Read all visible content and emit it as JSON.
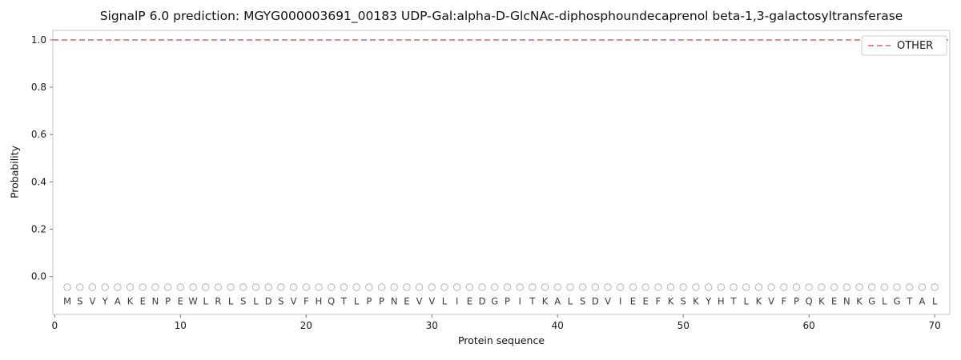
{
  "figure": {
    "title": "SignalP 6.0 prediction: MGYG000003691_00183 UDP-Gal:alpha-D-GlcNAc-diphosphoundecaprenol beta-1,3-galactosyltransferase"
  },
  "chart_data": {
    "type": "line",
    "title": "SignalP 6.0 prediction: MGYG000003691_00183 UDP-Gal:alpha-D-GlcNAc-diphosphoundecaprenol beta-1,3-galactosyltransferase",
    "xlabel": "Protein sequence",
    "ylabel": "Probability",
    "xlim": [
      -0.15,
      71.2
    ],
    "ylim": [
      -0.16,
      1.04
    ],
    "x_ticks": [
      0,
      10,
      20,
      30,
      40,
      50,
      60,
      70
    ],
    "y_ticks": [
      "0.0",
      "0.2",
      "0.4",
      "0.6",
      "0.8",
      "1.0"
    ],
    "grid": false,
    "legend": {
      "position": "upper right",
      "entries": [
        {
          "label": "OTHER",
          "color": "#e26060",
          "linestyle": "dashed"
        }
      ]
    },
    "series": [
      {
        "name": "OTHER",
        "type": "hline",
        "y": 1.0,
        "x_start": -0.15,
        "x_end": 71.2,
        "color": "#e26060",
        "linestyle": "dashed"
      }
    ],
    "sequence": "MSVYAKENPEWLRLSLDSVFHQTLPPNEVVLIEDGPITKALSDVIEEFKSKYHTLKVFPQKENKGLGTAL",
    "sequence_start_position": 1,
    "residue_marker": {
      "shape": "circle",
      "y": -0.045
    },
    "sequence_label_y": -0.105,
    "colors": {
      "marker_stroke": "#b3b3b3",
      "letter": "#3a3a3a",
      "spine": "#c9c9c9",
      "tick": "#777777",
      "tick_label": "#1a1a1a"
    }
  }
}
